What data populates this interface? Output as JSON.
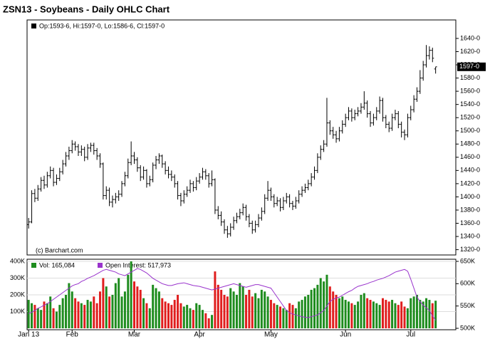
{
  "chart_data": [
    {
      "type": "ohlc",
      "title": "ZSN13 - Soybeans - Daily OHLC Chart",
      "info": "Op:1593-6, Hi:1597-0, Lo:1586-6, Cl:1597-0",
      "source": "(c) Barchart.com",
      "last_label": "1597-0",
      "color": "#000000",
      "ylim": [
        1312,
        1668
      ],
      "yticks": [
        {
          "value": 1320,
          "label": "1320-0"
        },
        {
          "value": 1340,
          "label": "1340-0"
        },
        {
          "value": 1360,
          "label": "1360-0"
        },
        {
          "value": 1380,
          "label": "1380-0"
        },
        {
          "value": 1400,
          "label": "1400-0"
        },
        {
          "value": 1420,
          "label": "1420-0"
        },
        {
          "value": 1440,
          "label": "1440-0"
        },
        {
          "value": 1460,
          "label": "1460-0"
        },
        {
          "value": 1480,
          "label": "1480-0"
        },
        {
          "value": 1500,
          "label": "1500-0"
        },
        {
          "value": 1520,
          "label": "1520-0"
        },
        {
          "value": 1540,
          "label": "1540-0"
        },
        {
          "value": 1560,
          "label": "1560-0"
        },
        {
          "value": 1580,
          "label": "1580-0"
        },
        {
          "value": 1600,
          "label": "1600-0"
        },
        {
          "value": 1620,
          "label": "1620-0"
        },
        {
          "value": 1640,
          "label": "1640-0"
        }
      ],
      "open": [
        1358,
        1362,
        1405,
        1398,
        1412,
        1425,
        1418,
        1432,
        1440,
        1422,
        1428,
        1438,
        1450,
        1462,
        1470,
        1480,
        1476,
        1468,
        1472,
        1460,
        1474,
        1478,
        1470,
        1462,
        1450,
        1402,
        1410,
        1392,
        1396,
        1400,
        1404,
        1420,
        1432,
        1452,
        1462,
        1456,
        1444,
        1430,
        1440,
        1420,
        1426,
        1448,
        1456,
        1462,
        1450,
        1440,
        1434,
        1430,
        1420,
        1402,
        1394,
        1404,
        1410,
        1420,
        1414,
        1424,
        1430,
        1438,
        1432,
        1420,
        1426,
        1380,
        1372,
        1362,
        1350,
        1344,
        1354,
        1364,
        1370,
        1376,
        1384,
        1370,
        1360,
        1350,
        1358,
        1368,
        1378,
        1398,
        1410,
        1400,
        1390,
        1394,
        1384,
        1394,
        1400,
        1390,
        1386,
        1394,
        1404,
        1410,
        1414,
        1420,
        1430,
        1440,
        1460,
        1472,
        1480,
        1512,
        1500,
        1494,
        1488,
        1500,
        1510,
        1520,
        1530,
        1520,
        1526,
        1530,
        1536,
        1542,
        1526,
        1512,
        1520,
        1530,
        1546,
        1520,
        1510,
        1504,
        1520,
        1526,
        1510,
        1498,
        1494,
        1520,
        1532,
        1548,
        1560,
        1580,
        1600,
        1614,
        1622,
        1593.75
      ],
      "high": [
        1368,
        1410,
        1412,
        1418,
        1430,
        1432,
        1438,
        1446,
        1444,
        1434,
        1444,
        1456,
        1468,
        1476,
        1486,
        1484,
        1480,
        1478,
        1476,
        1480,
        1482,
        1482,
        1474,
        1466,
        1452,
        1416,
        1414,
        1402,
        1406,
        1410,
        1424,
        1438,
        1458,
        1484,
        1468,
        1460,
        1448,
        1446,
        1442,
        1432,
        1452,
        1462,
        1466,
        1464,
        1454,
        1446,
        1440,
        1434,
        1424,
        1406,
        1410,
        1416,
        1426,
        1424,
        1430,
        1436,
        1444,
        1442,
        1436,
        1440,
        1428,
        1386,
        1378,
        1366,
        1356,
        1360,
        1370,
        1376,
        1382,
        1390,
        1388,
        1374,
        1364,
        1364,
        1374,
        1384,
        1404,
        1424,
        1414,
        1404,
        1400,
        1398,
        1400,
        1406,
        1404,
        1394,
        1400,
        1410,
        1416,
        1420,
        1426,
        1436,
        1446,
        1466,
        1478,
        1486,
        1550,
        1516,
        1506,
        1500,
        1506,
        1516,
        1526,
        1536,
        1534,
        1532,
        1536,
        1542,
        1560,
        1546,
        1530,
        1526,
        1536,
        1552,
        1550,
        1524,
        1514,
        1526,
        1532,
        1530,
        1514,
        1502,
        1526,
        1538,
        1554,
        1566,
        1592,
        1606,
        1630,
        1628,
        1626,
        1597
      ],
      "low": [
        1352,
        1360,
        1392,
        1394,
        1408,
        1412,
        1414,
        1428,
        1416,
        1418,
        1424,
        1434,
        1446,
        1456,
        1466,
        1470,
        1462,
        1462,
        1454,
        1456,
        1468,
        1464,
        1456,
        1444,
        1396,
        1396,
        1386,
        1384,
        1390,
        1394,
        1400,
        1416,
        1428,
        1448,
        1450,
        1438,
        1424,
        1426,
        1414,
        1416,
        1422,
        1442,
        1450,
        1444,
        1434,
        1428,
        1424,
        1414,
        1396,
        1386,
        1390,
        1400,
        1406,
        1408,
        1410,
        1420,
        1426,
        1426,
        1414,
        1416,
        1374,
        1366,
        1356,
        1344,
        1338,
        1340,
        1350,
        1360,
        1366,
        1372,
        1364,
        1354,
        1344,
        1346,
        1354,
        1364,
        1374,
        1394,
        1394,
        1384,
        1386,
        1378,
        1380,
        1390,
        1384,
        1380,
        1382,
        1390,
        1400,
        1406,
        1410,
        1416,
        1426,
        1436,
        1456,
        1468,
        1476,
        1494,
        1488,
        1482,
        1484,
        1496,
        1506,
        1516,
        1514,
        1516,
        1522,
        1526,
        1532,
        1520,
        1506,
        1508,
        1516,
        1526,
        1514,
        1504,
        1498,
        1500,
        1516,
        1504,
        1490,
        1486,
        1490,
        1516,
        1528,
        1544,
        1556,
        1576,
        1596,
        1608,
        1604,
        1586.75
      ],
      "close": [
        1362,
        1405,
        1398,
        1412,
        1425,
        1418,
        1432,
        1440,
        1422,
        1428,
        1438,
        1450,
        1462,
        1470,
        1480,
        1476,
        1468,
        1472,
        1460,
        1474,
        1478,
        1470,
        1462,
        1450,
        1402,
        1410,
        1392,
        1396,
        1400,
        1404,
        1420,
        1432,
        1452,
        1462,
        1456,
        1444,
        1430,
        1440,
        1420,
        1426,
        1448,
        1456,
        1462,
        1450,
        1440,
        1434,
        1430,
        1420,
        1402,
        1394,
        1404,
        1410,
        1420,
        1414,
        1424,
        1430,
        1438,
        1432,
        1420,
        1426,
        1380,
        1372,
        1362,
        1350,
        1344,
        1354,
        1364,
        1370,
        1376,
        1384,
        1370,
        1360,
        1350,
        1358,
        1368,
        1378,
        1398,
        1410,
        1400,
        1390,
        1394,
        1384,
        1394,
        1400,
        1390,
        1386,
        1394,
        1404,
        1410,
        1414,
        1420,
        1430,
        1440,
        1460,
        1472,
        1480,
        1512,
        1500,
        1494,
        1488,
        1500,
        1510,
        1520,
        1530,
        1520,
        1526,
        1530,
        1536,
        1542,
        1526,
        1512,
        1520,
        1530,
        1546,
        1520,
        1510,
        1504,
        1520,
        1526,
        1510,
        1498,
        1494,
        1520,
        1532,
        1548,
        1560,
        1580,
        1600,
        1614,
        1622,
        1610,
        1597
      ]
    },
    {
      "type": "volume",
      "up_color": "#1e8c1e",
      "down_color": "#e01e1e",
      "xlim": [
        -0.5,
        137.5
      ],
      "xticks": [
        {
          "value": 0,
          "label": "Jan 13"
        },
        {
          "value": 14,
          "label": "Feb"
        },
        {
          "value": 34,
          "label": "Mar"
        },
        {
          "value": 55,
          "label": "Apr"
        },
        {
          "value": 78,
          "label": "May"
        },
        {
          "value": 102,
          "label": "Jun"
        },
        {
          "value": 123,
          "label": "Jul"
        }
      ],
      "ylim": [
        0,
        400000
      ],
      "yticks": [
        {
          "value": 100000,
          "label": "100K"
        },
        {
          "value": 200000,
          "label": "200K"
        },
        {
          "value": 300000,
          "label": "300K"
        },
        {
          "value": 400000,
          "label": "400K"
        }
      ],
      "y2lim": [
        500000,
        650000
      ],
      "y2ticks": [
        {
          "value": 500000,
          "label": "500K"
        },
        {
          "value": 550000,
          "label": "550K"
        },
        {
          "value": 600000,
          "label": "600K"
        },
        {
          "value": 650000,
          "label": "650K"
        }
      ],
      "series": [
        {
          "name": "Vol: 165,084",
          "color": "#1e8c1e",
          "values": [
            170000,
            150000,
            140000,
            120000,
            110000,
            160000,
            150000,
            190000,
            120000,
            100000,
            140000,
            180000,
            200000,
            270000,
            220000,
            180000,
            160000,
            150000,
            140000,
            170000,
            160000,
            190000,
            150000,
            220000,
            300000,
            250000,
            190000,
            200000,
            270000,
            300000,
            190000,
            220000,
            320000,
            400000,
            280000,
            250000,
            230000,
            180000,
            150000,
            120000,
            260000,
            240000,
            220000,
            180000,
            160000,
            150000,
            140000,
            170000,
            200000,
            150000,
            130000,
            140000,
            120000,
            110000,
            150000,
            140000,
            110000,
            90000,
            60000,
            80000,
            340000,
            260000,
            230000,
            200000,
            190000,
            240000,
            220000,
            200000,
            270000,
            250000,
            200000,
            230000,
            190000,
            210000,
            180000,
            230000,
            220000,
            190000,
            170000,
            150000,
            140000,
            130000,
            120000,
            110000,
            150000,
            140000,
            120000,
            160000,
            170000,
            190000,
            200000,
            230000,
            240000,
            260000,
            300000,
            280000,
            320000,
            250000,
            220000,
            200000,
            180000,
            190000,
            170000,
            160000,
            150000,
            140000,
            160000,
            200000,
            210000,
            180000,
            170000,
            160000,
            150000,
            140000,
            180000,
            170000,
            160000,
            170000,
            150000,
            140000,
            160000,
            130000,
            120000,
            180000,
            190000,
            200000,
            170000,
            160000,
            180000,
            170000,
            150000,
            165084
          ]
        },
        {
          "name": "Open Interest: 517,973",
          "color": "#9933cc",
          "axis": "y2",
          "values": [
            533000,
            536000,
            540000,
            545000,
            548000,
            552000,
            555000,
            560000,
            565000,
            570000,
            575000,
            580000,
            585000,
            590000,
            595000,
            598000,
            600000,
            605000,
            608000,
            612000,
            615000,
            618000,
            622000,
            626000,
            630000,
            632000,
            630000,
            628000,
            626000,
            622000,
            620000,
            618000,
            622000,
            626000,
            630000,
            634000,
            632000,
            628000,
            624000,
            618000,
            612000,
            608000,
            604000,
            600000,
            598000,
            596000,
            596000,
            598000,
            600000,
            601000,
            602000,
            600000,
            598000,
            596000,
            595000,
            594000,
            592000,
            590000,
            588000,
            586000,
            588000,
            590000,
            592000,
            594000,
            596000,
            598000,
            600000,
            598000,
            596000,
            594000,
            592000,
            594000,
            596000,
            598000,
            598000,
            596000,
            594000,
            592000,
            590000,
            580000,
            570000,
            560000,
            550000,
            540000,
            535000,
            532000,
            530000,
            528000,
            526000,
            525000,
            524000,
            526000,
            528000,
            530000,
            535000,
            540000,
            550000,
            560000,
            565000,
            568000,
            570000,
            574000,
            578000,
            582000,
            585000,
            590000,
            594000,
            596000,
            598000,
            600000,
            603000,
            605000,
            608000,
            610000,
            612000,
            615000,
            618000,
            622000,
            626000,
            628000,
            630000,
            632000,
            628000,
            610000,
            590000,
            570000,
            560000,
            552000,
            546000,
            540000,
            528000,
            517973
          ]
        }
      ]
    }
  ]
}
